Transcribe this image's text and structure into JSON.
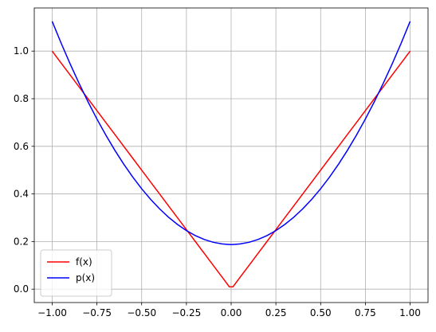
{
  "chart_data": {
    "type": "line",
    "x": [
      -1,
      -0.95,
      -0.9,
      -0.85,
      -0.8,
      -0.75,
      -0.7,
      -0.65,
      -0.6,
      -0.55,
      -0.5,
      -0.45,
      -0.4,
      -0.35,
      -0.3,
      -0.25,
      -0.2,
      -0.15,
      -0.1,
      -0.05,
      -0.01,
      0.01,
      0.05,
      0.1,
      0.15,
      0.2,
      0.25,
      0.3,
      0.35,
      0.4,
      0.45,
      0.5,
      0.55,
      0.6,
      0.65,
      0.7,
      0.75,
      0.8,
      0.85,
      0.9,
      0.95,
      1
    ],
    "series": [
      {
        "name": "f(x)",
        "color": "#ff0000",
        "values": [
          1,
          0.95,
          0.9,
          0.85,
          0.8,
          0.75,
          0.7,
          0.65,
          0.6,
          0.55,
          0.5,
          0.45,
          0.4,
          0.35,
          0.3,
          0.25,
          0.2,
          0.15,
          0.1,
          0.05,
          0.01,
          0.01,
          0.05,
          0.1,
          0.15,
          0.2,
          0.25,
          0.3,
          0.35,
          0.4,
          0.45,
          0.5,
          0.55,
          0.6,
          0.65,
          0.7,
          0.75,
          0.8,
          0.85,
          0.9,
          0.95,
          1
        ]
      },
      {
        "name": "p(x)",
        "color": "#0000ff",
        "values": [
          1.125,
          1.03359,
          0.946875,
          0.864844,
          0.7875,
          0.714844,
          0.646875,
          0.583594,
          0.525,
          0.471094,
          0.421875,
          0.377344,
          0.3375,
          0.302344,
          0.271875,
          0.246094,
          0.225,
          0.208594,
          0.196875,
          0.189844,
          0.187594,
          0.187594,
          0.189844,
          0.196875,
          0.208594,
          0.225,
          0.246094,
          0.271875,
          0.302344,
          0.3375,
          0.377344,
          0.421875,
          0.471094,
          0.525,
          0.583594,
          0.646875,
          0.714844,
          0.7875,
          0.864844,
          0.946875,
          1.03359,
          1.125
        ]
      }
    ],
    "xlim": [
      -1.1,
      1.1
    ],
    "ylim": [
      -0.05625,
      1.18125
    ],
    "xticks": [
      {
        "value": -1,
        "label": "−1.00"
      },
      {
        "value": -0.75,
        "label": "−0.75"
      },
      {
        "value": -0.5,
        "label": "−0.50"
      },
      {
        "value": -0.25,
        "label": "−0.25"
      },
      {
        "value": 0,
        "label": "0.00"
      },
      {
        "value": 0.25,
        "label": "0.25"
      },
      {
        "value": 0.5,
        "label": "0.50"
      },
      {
        "value": 0.75,
        "label": "0.75"
      },
      {
        "value": 1,
        "label": "1.00"
      }
    ],
    "yticks": [
      {
        "value": 0,
        "label": "0.0"
      },
      {
        "value": 0.2,
        "label": "0.2"
      },
      {
        "value": 0.4,
        "label": "0.4"
      },
      {
        "value": 0.6,
        "label": "0.6"
      },
      {
        "value": 0.8,
        "label": "0.8"
      },
      {
        "value": 1,
        "label": "1.0"
      }
    ],
    "grid": true,
    "legend": "lower left"
  }
}
